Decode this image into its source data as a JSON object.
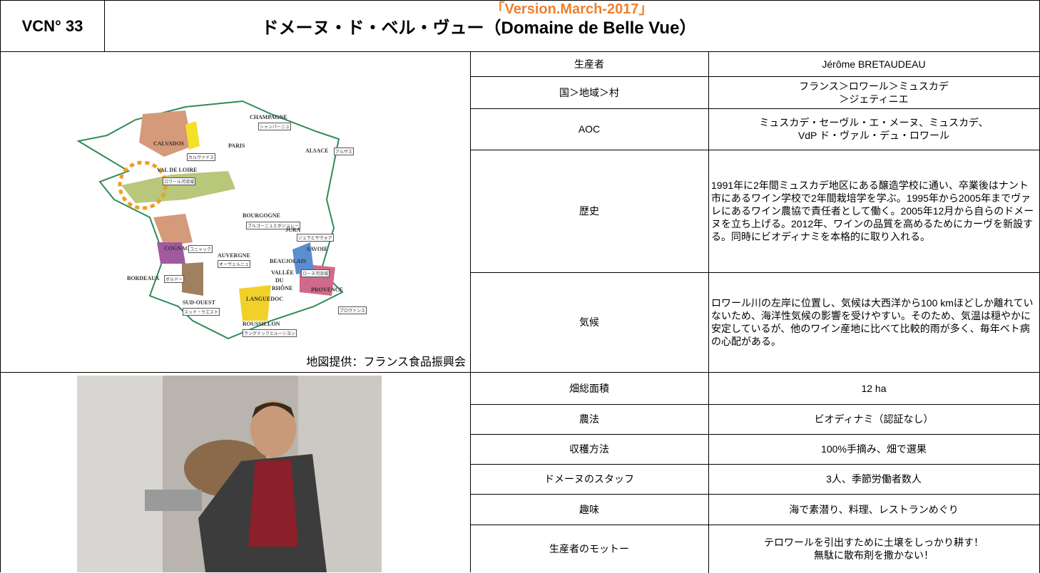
{
  "header": {
    "code": "VCN° 33",
    "version": "「Version.March-2017」",
    "title": "ドメーヌ・ド・ベル・ヴュー（Domaine de Belle Vue）"
  },
  "map": {
    "labels": [
      "CHAMPAGNE",
      "シャンパーニュ",
      "CALVADOS",
      "カルヴァドス",
      "PARIS",
      "ALSACE",
      "アルザス",
      "VAL DE LOIRE",
      "ロワール河流域",
      "BOURGOGNE",
      "ブルゴーニュとボジョレー",
      "JURA",
      "ジュラとサヴォア",
      "SAVOIE",
      "COGNAC",
      "コニャック",
      "AUVERGNE",
      "オーヴェルニュ",
      "BEAUJOLAIS",
      "VALLÉE",
      "DU",
      "RHÔNE",
      "ローヌ河流域",
      "BORDEAUX",
      "ボルドー",
      "LANGUEDOC",
      "PROVENCE",
      "プロヴァンス",
      "SUD-OUEST",
      "スッド・ウエスト",
      "ROUSSILLON",
      "ラングドックとルーシヨン"
    ],
    "credit": "地図提供：フランス食品振興会"
  },
  "table": {
    "rows": [
      [
        "生産者",
        "Jérôme BRETAUDEAU"
      ],
      [
        "国＞地域＞村",
        [
          "フランス＞ロワール＞ミュスカデ",
          "＞ジェティニエ"
        ]
      ],
      [
        "AOC",
        [
          "ミュスカデ・セーヴル・エ・メーヌ、ミュスカデ、",
          "VdP ド・ヴァル・デュ・ロワール"
        ]
      ],
      [
        "歴史",
        "1991年に2年間ミュスカデ地区にある醸造学校に通い、卒業後はナント市にあるワイン学校で2年間栽培学を学ぶ。1995年から2005年までヴァレにあるワイン農協で責任者として働く。2005年12月から自らのドメーヌを立ち上げる。2012年、ワインの品質を高めるためにカーヴを新設する。同時にビオディナミを本格的に取り入れる。"
      ],
      [
        "気候",
        "ロワール川の左岸に位置し、気候は大西洋から100 kmほどしか離れていないため、海洋性気候の影響を受けやすい。そのため、気温は穏やかに安定しているが、他のワイン産地に比べて比較的雨が多く、毎年ベト病の心配がある。"
      ],
      [
        "畑総面積",
        "12 ha"
      ],
      [
        "農法",
        "ビオディナミ（認証なし）"
      ],
      [
        "収穫方法",
        "100%手摘み、畑で選果"
      ],
      [
        "ドメーヌのスタッフ",
        "3人、季節労働者数人"
      ],
      [
        "趣味",
        "海で素潜り、料理、レストランめぐり"
      ],
      [
        "生産者のモットー",
        [
          "テロワールを引出すために土壌をしっかり耕す！",
          "無駄に散布剤を撒かない！"
        ]
      ]
    ]
  }
}
